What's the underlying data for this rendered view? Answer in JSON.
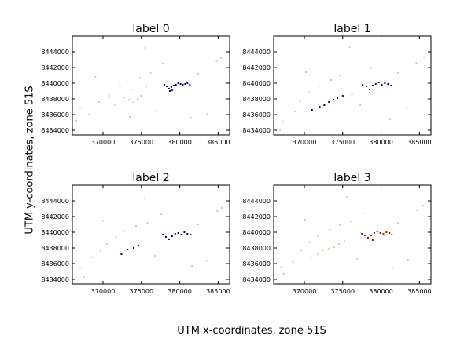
{
  "figure": {
    "xlabel": "UTM x-coordinates, zone 51S",
    "ylabel": "UTM y-coordinates, zone 51S"
  },
  "chart_data": [
    {
      "type": "scatter",
      "title": "label 0",
      "xlim": [
        366000,
        386500
      ],
      "ylim": [
        8433400,
        8446000
      ],
      "xticks": [
        "370000",
        "375000",
        "380000",
        "385000"
      ],
      "yticks": [
        "8434000",
        "8436000",
        "8438000",
        "8440000",
        "8442000",
        "8444000"
      ],
      "series": [
        {
          "color": "#00007f",
          "points": [
            [
              378000,
              8439800
            ],
            [
              378300,
              8439600
            ],
            [
              378600,
              8439300
            ],
            [
              378900,
              8439500
            ],
            [
              379200,
              8439700
            ],
            [
              379500,
              8439800
            ],
            [
              379800,
              8440000
            ],
            [
              380100,
              8439900
            ],
            [
              380400,
              8439800
            ],
            [
              380700,
              8439900
            ],
            [
              381000,
              8440000
            ],
            [
              381300,
              8439800
            ],
            [
              378700,
              8439000
            ],
            [
              379000,
              8439100
            ]
          ]
        },
        {
          "color": "#b0d8a0",
          "points": [
            [
              372800,
              8438200
            ],
            [
              373400,
              8437900
            ],
            [
              374000,
              8437600
            ],
            [
              374500,
              8438000
            ],
            [
              375000,
              8438400
            ],
            [
              373700,
              8439200
            ],
            [
              375600,
              8439600
            ]
          ]
        },
        {
          "color": "#cccccc",
          "points": [
            [
              367000,
              8436800
            ],
            [
              368200,
              8436000
            ],
            [
              369500,
              8437600
            ],
            [
              370800,
              8438400
            ],
            [
              371600,
              8437200
            ],
            [
              372200,
              8439600
            ],
            [
              373500,
              8435700
            ],
            [
              374800,
              8440700
            ],
            [
              376200,
              8441300
            ],
            [
              377000,
              8436400
            ],
            [
              377800,
              8442500
            ],
            [
              382400,
              8441200
            ],
            [
              383600,
              8436100
            ],
            [
              384800,
              8442800
            ],
            [
              385400,
              8443200
            ],
            [
              366500,
              8435200
            ],
            [
              369000,
              8440800
            ],
            [
              381500,
              8435600
            ],
            [
              375500,
              8444500
            ]
          ]
        }
      ]
    },
    {
      "type": "scatter",
      "title": "label 1",
      "xlim": [
        366000,
        386500
      ],
      "ylim": [
        8433400,
        8446000
      ],
      "xticks": [
        "370000",
        "375000",
        "380000",
        "385000"
      ],
      "yticks": [
        "8434000",
        "8436000",
        "8438000",
        "8440000",
        "8442000",
        "8444000"
      ],
      "series": [
        {
          "color": "#00007f",
          "points": [
            [
              377600,
              8439800
            ],
            [
              378100,
              8439600
            ],
            [
              378500,
              8439200
            ],
            [
              378900,
              8439700
            ],
            [
              379300,
              8439900
            ],
            [
              379700,
              8440100
            ],
            [
              380100,
              8439800
            ],
            [
              380500,
              8440000
            ],
            [
              380900,
              8439900
            ],
            [
              381300,
              8439700
            ],
            [
              372000,
              8437000
            ],
            [
              372600,
              8437200
            ],
            [
              373200,
              8437600
            ],
            [
              373800,
              8437900
            ],
            [
              374300,
              8438100
            ],
            [
              375000,
              8438400
            ],
            [
              371000,
              8436600
            ]
          ]
        },
        {
          "color": "#cccccc",
          "points": [
            [
              367200,
              8435100
            ],
            [
              368800,
              8436400
            ],
            [
              369400,
              8437700
            ],
            [
              370600,
              8438800
            ],
            [
              371900,
              8439700
            ],
            [
              373500,
              8440400
            ],
            [
              374600,
              8441000
            ],
            [
              376200,
              8438600
            ],
            [
              377300,
              8437200
            ],
            [
              378700,
              8442000
            ],
            [
              382200,
              8441300
            ],
            [
              383400,
              8436800
            ],
            [
              384600,
              8442600
            ],
            [
              385600,
              8443300
            ],
            [
              366800,
              8434000
            ],
            [
              370200,
              8441400
            ],
            [
              375900,
              8444600
            ],
            [
              381200,
              8435400
            ]
          ]
        }
      ]
    },
    {
      "type": "scatter",
      "title": "label 2",
      "xlim": [
        366000,
        386500
      ],
      "ylim": [
        8433400,
        8446000
      ],
      "xticks": [
        "370000",
        "375000",
        "380000",
        "385000"
      ],
      "yticks": [
        "8434000",
        "8436000",
        "8438000",
        "8440000",
        "8442000",
        "8444000"
      ],
      "series": [
        {
          "color": "#00007f",
          "points": [
            [
              377800,
              8439700
            ],
            [
              378200,
              8439400
            ],
            [
              378600,
              8439100
            ],
            [
              379000,
              8439500
            ],
            [
              379400,
              8439800
            ],
            [
              379800,
              8439900
            ],
            [
              380200,
              8439700
            ],
            [
              380600,
              8440000
            ],
            [
              381000,
              8439800
            ],
            [
              381400,
              8439700
            ],
            [
              373200,
              8437800
            ],
            [
              374000,
              8438000
            ],
            [
              374600,
              8438300
            ],
            [
              372400,
              8437200
            ]
          ]
        },
        {
          "color": "#cccccc",
          "points": [
            [
              367500,
              8434300
            ],
            [
              368600,
              8436800
            ],
            [
              369700,
              8437600
            ],
            [
              370500,
              8438500
            ],
            [
              371700,
              8439400
            ],
            [
              372800,
              8440200
            ],
            [
              374300,
              8440800
            ],
            [
              375800,
              8441200
            ],
            [
              376800,
              8437000
            ],
            [
              377600,
              8442300
            ],
            [
              382400,
              8441000
            ],
            [
              383500,
              8436400
            ],
            [
              384900,
              8442700
            ],
            [
              385500,
              8443100
            ],
            [
              367000,
              8435400
            ],
            [
              370000,
              8441500
            ],
            [
              375400,
              8444300
            ],
            [
              381600,
              8435700
            ]
          ]
        }
      ]
    },
    {
      "type": "scatter",
      "title": "label 3",
      "xlim": [
        366000,
        386500
      ],
      "ylim": [
        8433400,
        8446000
      ],
      "xticks": [
        "370000",
        "375000",
        "380000",
        "385000"
      ],
      "yticks": [
        "8434000",
        "8436000",
        "8438000",
        "8440000",
        "8442000",
        "8444000"
      ],
      "series": [
        {
          "color": "#b01000",
          "points": [
            [
              377500,
              8439800
            ],
            [
              377900,
              8439600
            ],
            [
              378300,
              8439300
            ],
            [
              378700,
              8439600
            ],
            [
              379100,
              8439900
            ],
            [
              379500,
              8440100
            ],
            [
              379900,
              8439900
            ],
            [
              380300,
              8439800
            ],
            [
              380700,
              8440000
            ],
            [
              381100,
              8439900
            ],
            [
              381400,
              8439700
            ],
            [
              378900,
              8439000
            ]
          ]
        },
        {
          "color": "#f0c8a0",
          "points": [
            [
              372400,
              8437700
            ],
            [
              373200,
              8437900
            ],
            [
              373900,
              8438100
            ],
            [
              374500,
              8438500
            ],
            [
              375200,
              8438900
            ],
            [
              371800,
              8437200
            ],
            [
              370900,
              8436800
            ]
          ]
        },
        {
          "color": "#cccccc",
          "points": [
            [
              367300,
              8434700
            ],
            [
              368500,
              8436200
            ],
            [
              369600,
              8437700
            ],
            [
              370700,
              8438700
            ],
            [
              371800,
              8439500
            ],
            [
              373300,
              8440300
            ],
            [
              374600,
              8440900
            ],
            [
              376100,
              8441400
            ],
            [
              376900,
              8436600
            ],
            [
              377700,
              8442400
            ],
            [
              382200,
              8441200
            ],
            [
              383500,
              8436500
            ],
            [
              384700,
              8442800
            ],
            [
              385500,
              8443400
            ],
            [
              366900,
              8435500
            ],
            [
              370100,
              8441600
            ],
            [
              375600,
              8444500
            ],
            [
              381500,
              8435500
            ]
          ]
        }
      ]
    }
  ]
}
